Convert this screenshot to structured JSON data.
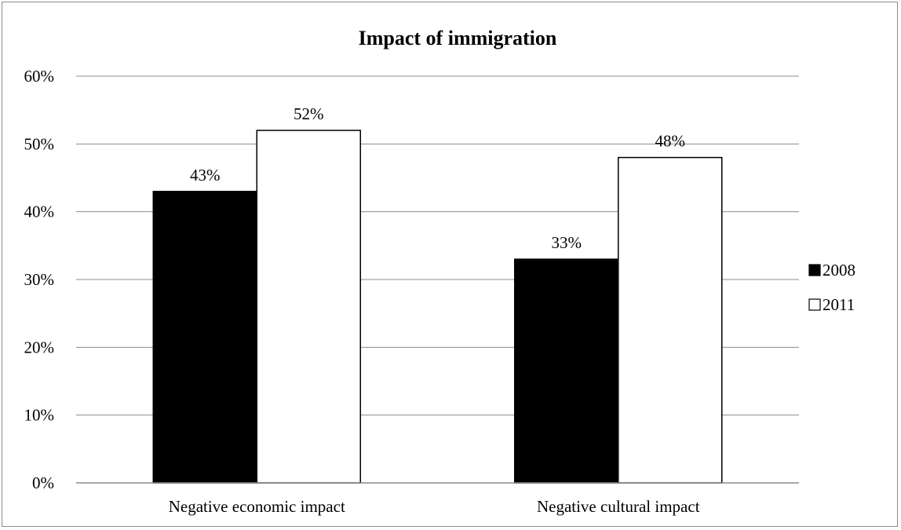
{
  "chart_data": {
    "type": "bar",
    "title": "Impact of immigration",
    "xlabel": "",
    "ylabel": "",
    "categories": [
      "Negative economic impact",
      "Negative cultural impact"
    ],
    "series": [
      {
        "name": "2008",
        "values": [
          0.43,
          0.33
        ],
        "labels": [
          "43%",
          "33%"
        ],
        "fill": "#000000"
      },
      {
        "name": "2011",
        "values": [
          0.52,
          0.48
        ],
        "labels": [
          "52%",
          "48%"
        ],
        "fill": "#ffffff"
      }
    ],
    "ylim": [
      0,
      0.6
    ],
    "yticks": [
      0,
      0.1,
      0.2,
      0.3,
      0.4,
      0.5,
      0.6
    ],
    "ytick_labels": [
      "0%",
      "10%",
      "20%",
      "30%",
      "40%",
      "50%",
      "60%"
    ],
    "grid": true,
    "legend_position": "right"
  }
}
